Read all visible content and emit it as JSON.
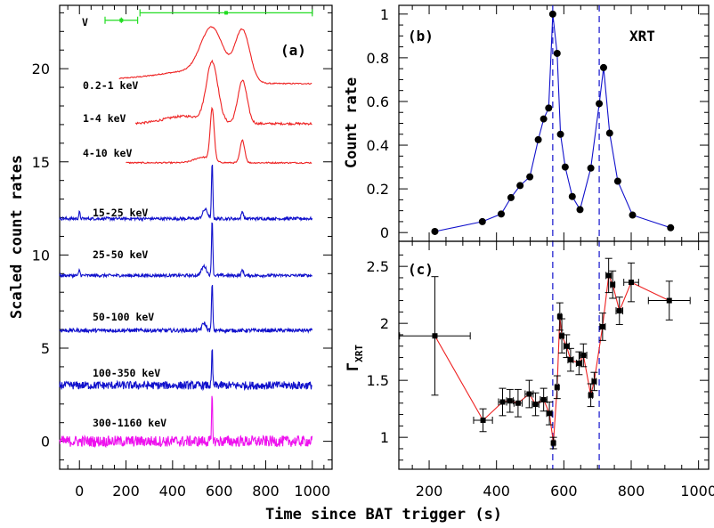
{
  "figure": {
    "xlabel": "Time since BAT trigger (s)"
  },
  "chart_data": [
    {
      "panel": "(a)",
      "type": "line",
      "ylabel": "Scaled count rates",
      "xlim": [
        -85,
        1085
      ],
      "ylim": [
        -1.5,
        23.4
      ],
      "xticks": [
        0,
        200,
        400,
        600,
        800,
        1000
      ],
      "yticks": [
        0,
        5,
        10,
        15,
        20
      ],
      "v_band": {
        "label": "V",
        "color": "#22dd22",
        "points": [
          {
            "x": 180,
            "y": 22.6,
            "xerr": 70,
            "yerr": 0.15
          },
          {
            "x": 630,
            "y": 23.0,
            "xerr": 370,
            "yerr": 0.1
          }
        ]
      },
      "series": [
        {
          "name": "0.2-1 keV",
          "color": "#ee2222",
          "t_start": 170,
          "t_end": 1000,
          "baseline": 19.2,
          "smooth": true,
          "peaks": [
            [
              300,
              0.35,
              250
            ],
            [
              450,
              0.35,
              120
            ],
            [
              570,
              2.8,
              70
            ],
            [
              700,
              2.8,
              45
            ]
          ],
          "noise": 0.05
        },
        {
          "name": "1-4 keV",
          "color": "#ee2222",
          "t_start": 240,
          "t_end": 1000,
          "baseline": 17.05,
          "smooth": true,
          "peaks": [
            [
              450,
              0.4,
              120
            ],
            [
              570,
              3.2,
              35
            ],
            [
              700,
              2.3,
              28
            ]
          ],
          "noise": 0.1
        },
        {
          "name": "4-10 keV",
          "color": "#ee2222",
          "t_start": 200,
          "t_end": 1000,
          "baseline": 14.95,
          "smooth": true,
          "peaks": [
            [
              530,
              0.3,
              50
            ],
            [
              570,
              2.8,
              12
            ],
            [
              700,
              1.2,
              14
            ]
          ],
          "noise": 0.06
        },
        {
          "name": "15-25 keV",
          "color": "#1111cc",
          "t_start": -85,
          "t_end": 1000,
          "baseline": 11.95,
          "peaks": [
            [
              0,
              0.35,
              4
            ],
            [
              570,
              3.0,
              4
            ],
            [
              540,
              0.5,
              15
            ],
            [
              700,
              0.4,
              6
            ]
          ],
          "noise": 0.08
        },
        {
          "name": "25-50 keV",
          "color": "#1111cc",
          "t_start": -85,
          "t_end": 1000,
          "baseline": 8.9,
          "peaks": [
            [
              0,
              0.3,
              4
            ],
            [
              570,
              3.0,
              4
            ],
            [
              535,
              0.5,
              15
            ],
            [
              700,
              0.3,
              6
            ]
          ],
          "noise": 0.08
        },
        {
          "name": "50-100 keV",
          "color": "#1111cc",
          "t_start": -85,
          "t_end": 1000,
          "baseline": 5.95,
          "peaks": [
            [
              570,
              2.5,
              4
            ],
            [
              535,
              0.4,
              12
            ]
          ],
          "noise": 0.1
        },
        {
          "name": "100-350 keV",
          "color": "#1111cc",
          "t_start": -85,
          "t_end": 1000,
          "baseline": 3.0,
          "peaks": [
            [
              570,
              2.0,
              3
            ]
          ],
          "noise": 0.22
        },
        {
          "name": "300-1160 keV",
          "color": "#ee11ee",
          "t_start": -85,
          "t_end": 1000,
          "baseline": 0.0,
          "peaks": [
            [
              570,
              2.5,
              3
            ]
          ],
          "noise": 0.3
        }
      ]
    },
    {
      "panel": "(b)",
      "type": "line",
      "title": "XRT",
      "ylabel": "Count rate",
      "color": "#1111cc",
      "xlim": [
        110,
        1030
      ],
      "ylim": [
        -0.04,
        1.04
      ],
      "yticks": [
        0,
        0.2,
        0.4,
        0.6,
        0.8,
        1
      ],
      "x": [
        217,
        358,
        414,
        443,
        470,
        499,
        524,
        540,
        555,
        567,
        580,
        590,
        604,
        625,
        648,
        680,
        705,
        718,
        736,
        760,
        804,
        917
      ],
      "y": [
        0.005,
        0.05,
        0.085,
        0.16,
        0.215,
        0.255,
        0.425,
        0.52,
        0.57,
        1.0,
        0.82,
        0.45,
        0.3,
        0.165,
        0.105,
        0.295,
        0.59,
        0.755,
        0.455,
        0.235,
        0.08,
        0.022
      ],
      "dashed_lines_x": [
        567,
        705
      ]
    },
    {
      "panel": "(c)",
      "type": "scatter",
      "ylabel": "Γ",
      "ylabel_sub": "XRT",
      "color": "#ee2222",
      "xlim": [
        110,
        1030
      ],
      "ylim": [
        0.72,
        2.72
      ],
      "xticks": [
        200,
        400,
        600,
        800,
        1000
      ],
      "yticks": [
        1,
        1.5,
        2,
        2.5
      ],
      "x": [
        217,
        360,
        418,
        440,
        464,
        497,
        516,
        540,
        557,
        569,
        580,
        588,
        594,
        608,
        620,
        645,
        658,
        680,
        690,
        715,
        733,
        745,
        765,
        800,
        913
      ],
      "y": [
        1.89,
        1.15,
        1.31,
        1.32,
        1.3,
        1.38,
        1.29,
        1.33,
        1.21,
        0.95,
        1.44,
        2.06,
        1.89,
        1.8,
        1.68,
        1.65,
        1.72,
        1.37,
        1.49,
        1.97,
        2.42,
        2.34,
        2.11,
        2.36,
        2.2
      ],
      "xerr": [
        105,
        28,
        12,
        10,
        12,
        12,
        10,
        10,
        8,
        4,
        5,
        4,
        5,
        8,
        8,
        8,
        10,
        5,
        6,
        8,
        8,
        6,
        10,
        22,
        62
      ],
      "yerr": [
        0.52,
        0.1,
        0.12,
        0.1,
        0.12,
        0.12,
        0.1,
        0.1,
        0.1,
        0.05,
        0.1,
        0.12,
        0.15,
        0.1,
        0.1,
        0.1,
        0.1,
        0.1,
        0.08,
        0.12,
        0.15,
        0.12,
        0.12,
        0.17,
        0.17
      ],
      "dashed_lines_x": [
        567,
        705
      ]
    }
  ]
}
